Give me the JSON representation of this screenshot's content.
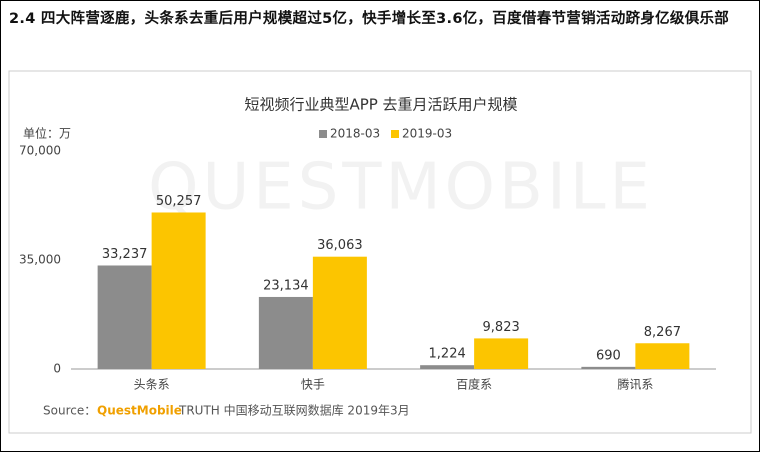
{
  "header": {
    "title": "2.4 四大阵营逐鹿，头条系去重后用户规模超过5亿，快手增长至3.6亿，百度借春节营销活动跻身亿级俱乐部"
  },
  "chart_data": {
    "type": "bar",
    "title": "短视频行业典型APP 去重月活跃用户规模",
    "unit_label": "单位：万",
    "watermark": "QUESTMOBILE",
    "categories": [
      "头条系",
      "快手",
      "百度系",
      "腾讯系"
    ],
    "series": [
      {
        "name": "2018-03",
        "color": "#8c8c8c",
        "values": [
          33237,
          23134,
          1224,
          690
        ],
        "value_labels": [
          "33,237",
          "23,134",
          "1,224",
          "690"
        ]
      },
      {
        "name": "2019-03",
        "color": "#fcc500",
        "values": [
          50257,
          36063,
          9823,
          8267
        ],
        "value_labels": [
          "50,257",
          "36,063",
          "9,823",
          "8,267"
        ]
      }
    ],
    "ylim": [
      0,
      70000
    ],
    "yticks": [
      0,
      {
        "value": 35000,
        "label": "35,000"
      },
      {
        "value": 70000,
        "label": "70,000"
      }
    ],
    "grid": false,
    "legend": "top"
  },
  "source": {
    "prefix": "Source：",
    "brand": "QuestMobile",
    "text": "TRUTH 中国移动互联网数据库 2019年3月"
  }
}
